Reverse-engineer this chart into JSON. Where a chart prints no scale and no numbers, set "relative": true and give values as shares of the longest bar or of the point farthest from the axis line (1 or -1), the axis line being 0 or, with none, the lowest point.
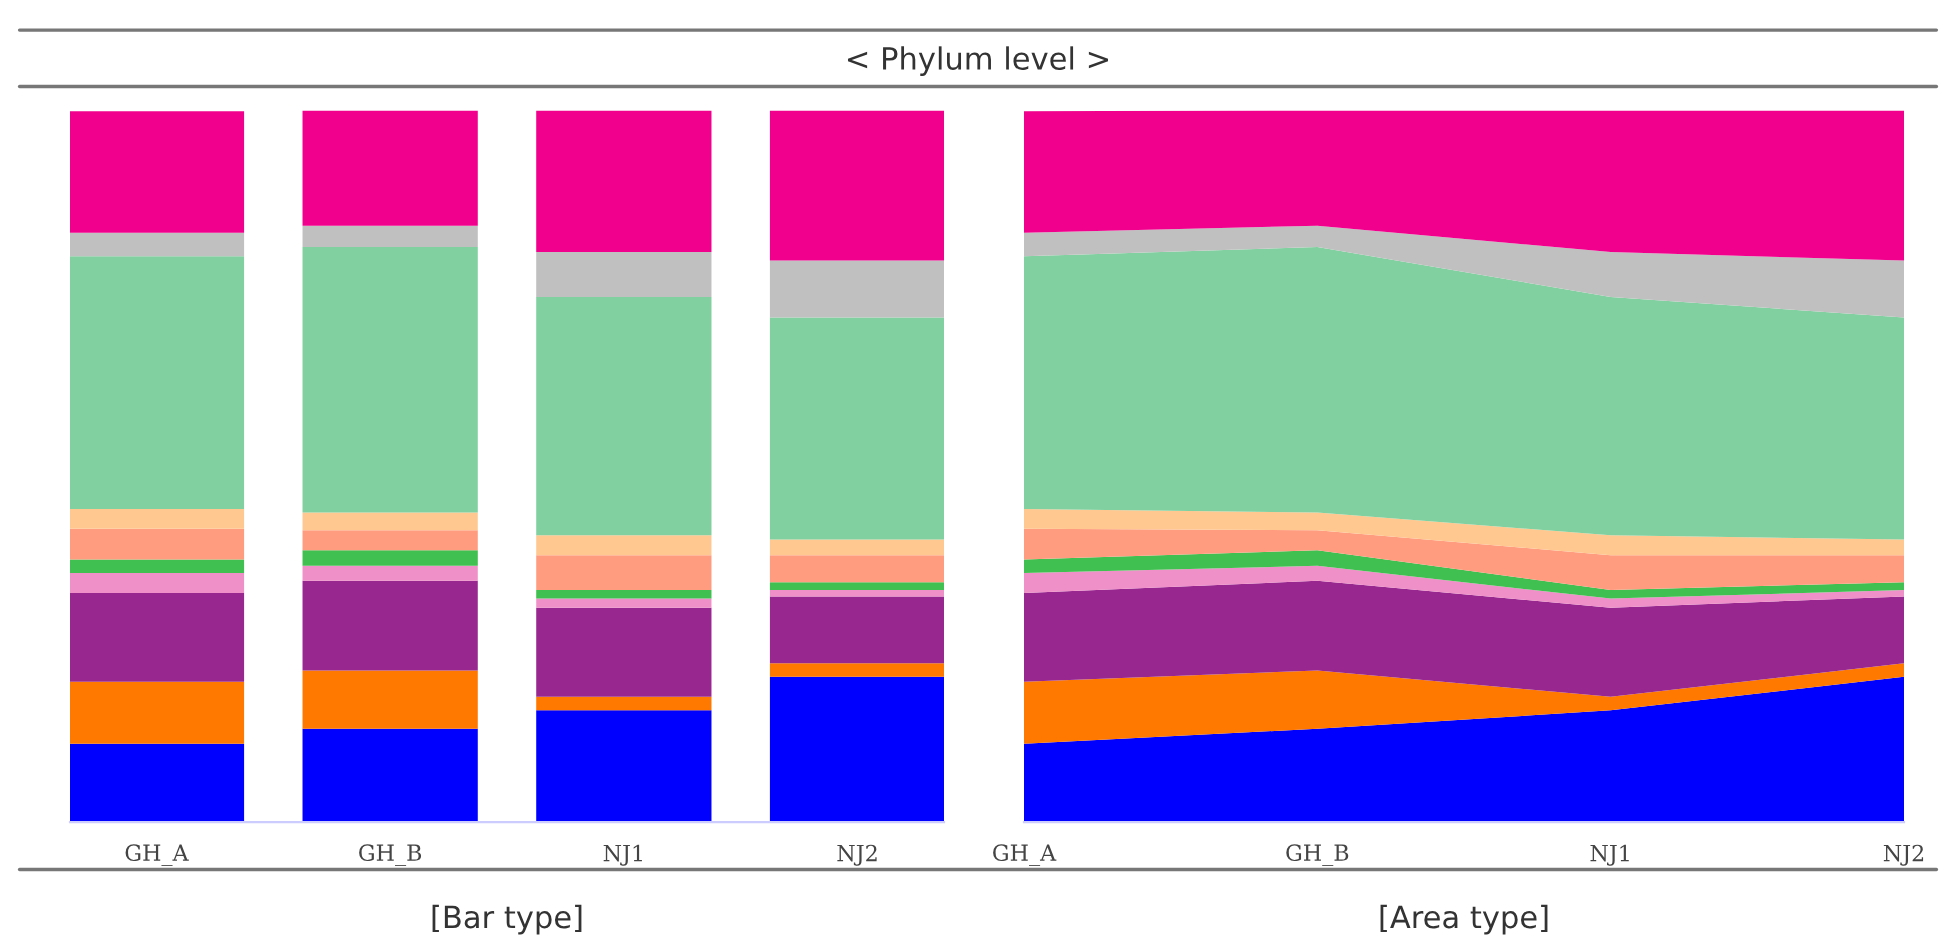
{
  "chart_data": [
    {
      "type": "bar",
      "title": "< Phylum level >",
      "xlabel": "[Bar type]",
      "stacked": true,
      "relative": true,
      "categories": [
        "GH_A",
        "GH_B",
        "NJ1",
        "NJ2"
      ],
      "series": [
        {
          "color": "#0000ff",
          "values": [
            0.11,
            0.131,
            0.157,
            0.204
          ]
        },
        {
          "color": "#ff7800",
          "values": [
            0.087,
            0.082,
            0.019,
            0.019
          ]
        },
        {
          "color": "#982890",
          "values": [
            0.125,
            0.126,
            0.125,
            0.094
          ]
        },
        {
          "color": "#f090c8",
          "values": [
            0.028,
            0.021,
            0.013,
            0.009
          ]
        },
        {
          "color": "#40c050",
          "values": [
            0.019,
            0.022,
            0.012,
            0.011
          ]
        },
        {
          "color": "#ff9c80",
          "values": [
            0.043,
            0.028,
            0.049,
            0.038
          ]
        },
        {
          "color": "#ffc890",
          "values": [
            0.028,
            0.025,
            0.028,
            0.022
          ]
        },
        {
          "color": "#80d0a0",
          "values": [
            0.355,
            0.373,
            0.335,
            0.312
          ]
        },
        {
          "color": "#c0c0c0",
          "values": [
            0.033,
            0.03,
            0.063,
            0.08
          ]
        },
        {
          "color": "#f0008c",
          "values": [
            0.171,
            0.162,
            0.199,
            0.211
          ]
        }
      ]
    },
    {
      "type": "area",
      "xlabel": "[Area type]",
      "stacked": true,
      "relative": true,
      "categories": [
        "GH_A",
        "GH_B",
        "NJ1",
        "NJ2"
      ],
      "series": [
        {
          "color": "#0000ff",
          "values": [
            0.11,
            0.131,
            0.157,
            0.204
          ]
        },
        {
          "color": "#ff7800",
          "values": [
            0.087,
            0.082,
            0.019,
            0.019
          ]
        },
        {
          "color": "#982890",
          "values": [
            0.125,
            0.126,
            0.125,
            0.094
          ]
        },
        {
          "color": "#f090c8",
          "values": [
            0.028,
            0.021,
            0.013,
            0.009
          ]
        },
        {
          "color": "#40c050",
          "values": [
            0.019,
            0.022,
            0.012,
            0.011
          ]
        },
        {
          "color": "#ff9c80",
          "values": [
            0.043,
            0.028,
            0.049,
            0.038
          ]
        },
        {
          "color": "#ffc890",
          "values": [
            0.028,
            0.025,
            0.028,
            0.022
          ]
        },
        {
          "color": "#80d0a0",
          "values": [
            0.355,
            0.373,
            0.335,
            0.312
          ]
        },
        {
          "color": "#c0c0c0",
          "values": [
            0.033,
            0.03,
            0.063,
            0.08
          ]
        },
        {
          "color": "#f0008c",
          "values": [
            0.171,
            0.162,
            0.199,
            0.211
          ]
        }
      ]
    }
  ]
}
